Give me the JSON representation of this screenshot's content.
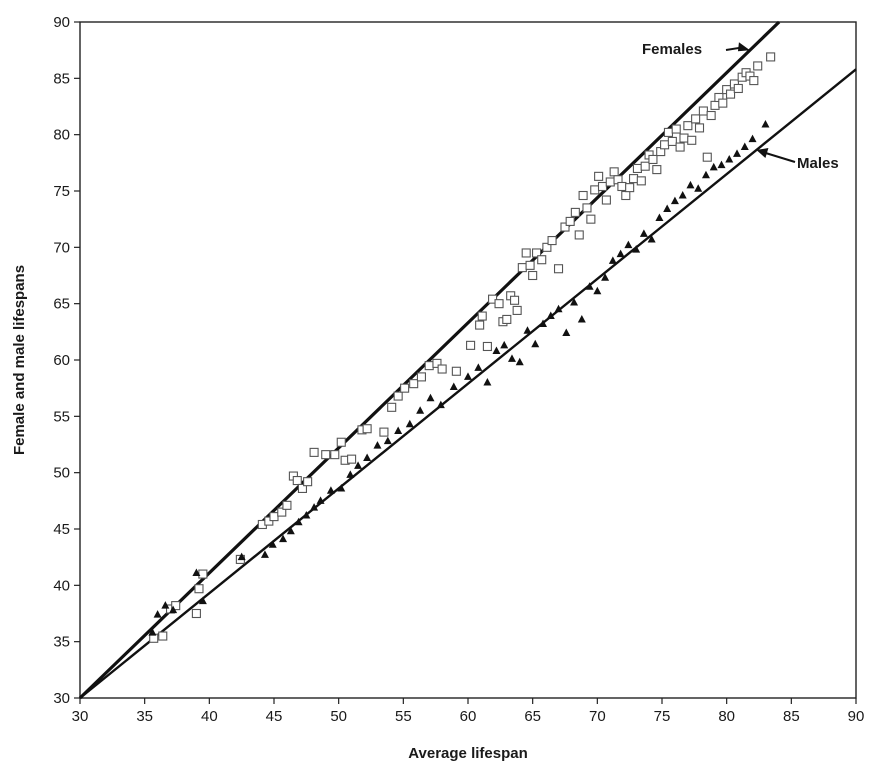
{
  "chart_data": {
    "type": "scatter",
    "title": "",
    "xlabel": "Average lifespan",
    "ylabel": "Female and male lifespans",
    "xlim": [
      30,
      90
    ],
    "ylim": [
      30,
      90
    ],
    "xticks": [
      30,
      35,
      40,
      45,
      50,
      55,
      60,
      65,
      70,
      75,
      80,
      85,
      90
    ],
    "yticks": [
      30,
      35,
      40,
      45,
      50,
      55,
      60,
      65,
      70,
      75,
      80,
      85,
      90
    ],
    "grid": false,
    "legend": "none",
    "series": [
      {
        "name": "Females",
        "marker": "open-square",
        "color": "#555555",
        "trend_line": {
          "slope": 1.11,
          "intercept": -3.3
        },
        "x": [
          35.7,
          36.4,
          37.0,
          37.4,
          39.0,
          39.2,
          39.5,
          42.4,
          44.1,
          44.6,
          45.0,
          45.6,
          46.0,
          46.5,
          46.8,
          47.2,
          47.6,
          48.1,
          49.0,
          49.7,
          50.2,
          50.5,
          51.0,
          51.8,
          52.2,
          53.5,
          54.1,
          54.6,
          55.1,
          55.8,
          56.4,
          57.0,
          57.6,
          58.0,
          59.1,
          60.2,
          60.9,
          61.1,
          61.5,
          61.9,
          62.4,
          62.7,
          63.0,
          63.3,
          63.6,
          63.8,
          64.2,
          64.5,
          64.8,
          65.0,
          65.3,
          65.7,
          66.1,
          66.5,
          67.0,
          67.5,
          67.9,
          68.3,
          68.6,
          68.9,
          69.2,
          69.5,
          69.8,
          70.1,
          70.4,
          70.7,
          71.0,
          71.3,
          71.6,
          71.9,
          72.2,
          72.5,
          72.8,
          73.1,
          73.4,
          73.7,
          74.0,
          74.3,
          74.6,
          74.9,
          75.2,
          75.5,
          75.8,
          76.1,
          76.4,
          76.7,
          77.0,
          77.3,
          77.6,
          77.9,
          78.2,
          78.5,
          78.8,
          79.1,
          79.4,
          79.7,
          80.0,
          80.3,
          80.6,
          80.9,
          81.2,
          81.5,
          81.8,
          82.1,
          82.4,
          83.4
        ],
        "y": [
          35.3,
          35.5,
          37.9,
          38.2,
          37.5,
          39.7,
          41.0,
          42.3,
          45.4,
          45.7,
          46.1,
          46.5,
          47.1,
          49.7,
          49.3,
          48.6,
          49.2,
          51.8,
          51.6,
          51.6,
          52.7,
          51.1,
          51.2,
          53.8,
          53.9,
          53.6,
          55.8,
          56.8,
          57.5,
          57.9,
          58.5,
          59.5,
          59.7,
          59.2,
          59.0,
          61.3,
          63.1,
          63.9,
          61.2,
          65.4,
          65.0,
          63.4,
          63.6,
          65.7,
          65.3,
          64.4,
          68.2,
          69.5,
          68.4,
          67.5,
          69.5,
          68.9,
          70.0,
          70.6,
          68.1,
          71.8,
          72.3,
          73.1,
          71.1,
          74.6,
          73.5,
          72.5,
          75.1,
          76.3,
          75.4,
          74.2,
          75.8,
          76.7,
          76.0,
          75.4,
          74.6,
          75.3,
          76.1,
          77.0,
          75.9,
          77.2,
          78.2,
          77.8,
          76.9,
          78.5,
          79.1,
          80.2,
          79.4,
          80.5,
          78.9,
          79.7,
          80.8,
          79.5,
          81.4,
          80.6,
          82.1,
          78.0,
          81.7,
          82.6,
          83.3,
          82.8,
          84.0,
          83.6,
          84.5,
          84.1,
          85.1,
          85.5,
          85.2,
          84.8,
          86.1,
          86.9
        ]
      },
      {
        "name": "Males",
        "marker": "filled-triangle",
        "color": "#111111",
        "trend_line": {
          "slope": 0.93,
          "intercept": 2.1
        },
        "x": [
          35.6,
          36.0,
          36.6,
          37.2,
          39.0,
          39.5,
          42.5,
          44.3,
          44.9,
          45.7,
          46.3,
          46.9,
          47.5,
          48.1,
          48.6,
          49.4,
          50.2,
          50.9,
          51.5,
          52.2,
          53.0,
          53.8,
          54.6,
          55.5,
          56.3,
          57.1,
          57.9,
          58.9,
          60.0,
          60.8,
          61.5,
          62.2,
          62.8,
          63.4,
          64.0,
          64.6,
          65.2,
          65.8,
          66.4,
          67.0,
          67.6,
          68.2,
          68.8,
          69.4,
          70.0,
          70.6,
          71.2,
          71.8,
          72.4,
          73.0,
          73.6,
          74.2,
          74.8,
          75.4,
          76.0,
          76.6,
          77.2,
          77.8,
          78.4,
          79.0,
          79.6,
          80.2,
          80.8,
          81.4,
          82.0,
          83.0
        ],
        "y": [
          35.8,
          37.4,
          38.2,
          37.8,
          41.1,
          38.6,
          42.5,
          42.7,
          43.6,
          44.1,
          44.8,
          45.6,
          46.2,
          46.9,
          47.5,
          48.4,
          48.6,
          49.8,
          50.6,
          51.3,
          52.4,
          52.8,
          53.7,
          54.3,
          55.5,
          56.6,
          56.0,
          57.6,
          58.5,
          59.3,
          58.0,
          60.8,
          61.3,
          60.1,
          59.8,
          62.6,
          61.4,
          63.2,
          63.9,
          64.5,
          62.4,
          65.1,
          63.6,
          66.5,
          66.1,
          67.3,
          68.8,
          69.4,
          70.2,
          69.8,
          71.2,
          70.7,
          72.6,
          73.4,
          74.1,
          74.6,
          75.5,
          75.2,
          76.4,
          77.1,
          77.3,
          77.8,
          78.3,
          78.9,
          79.6,
          80.9
        ]
      }
    ],
    "annotations": [
      "Females",
      "Males"
    ]
  }
}
